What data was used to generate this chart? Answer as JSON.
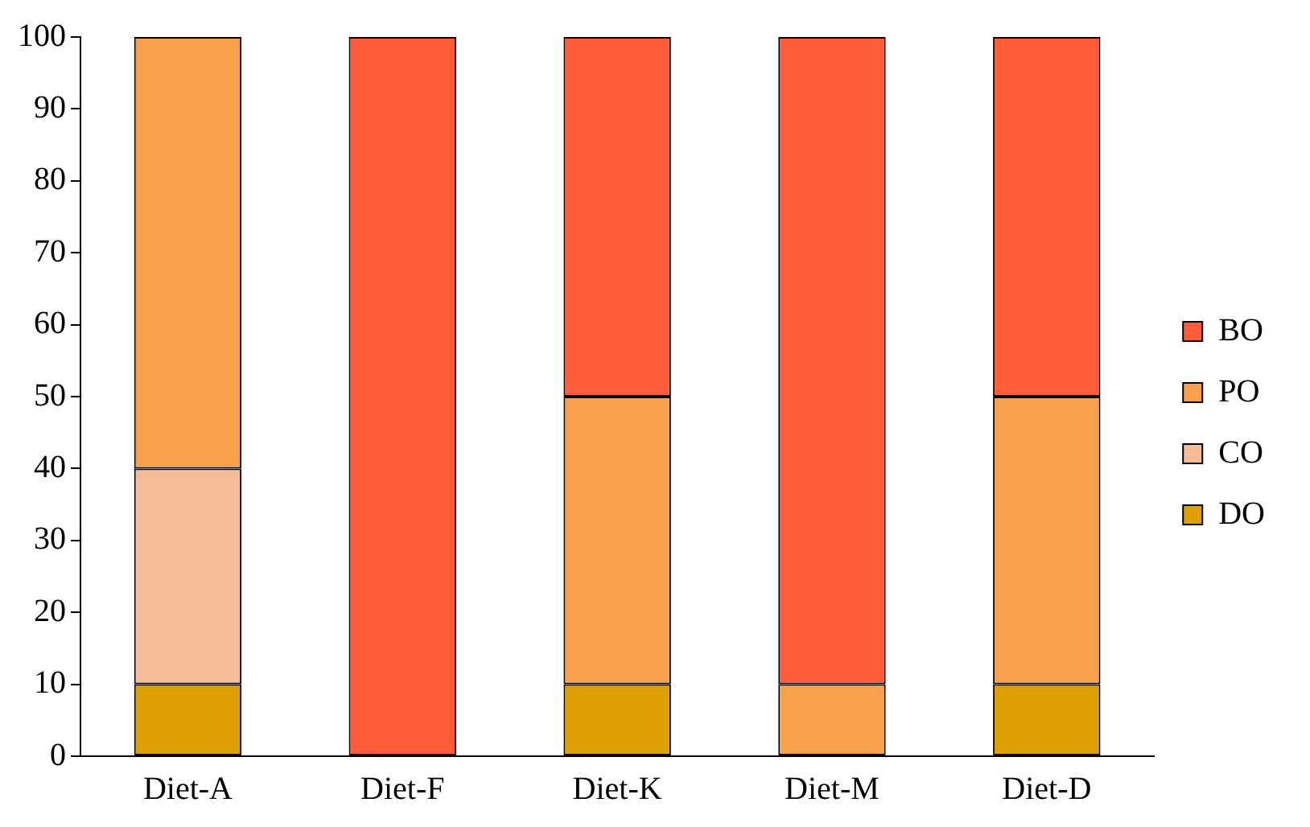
{
  "chart_data": {
    "type": "bar",
    "stacked": true,
    "categories": [
      "Diet-A",
      "Diet-F",
      "Diet-K",
      "Diet-M",
      "Diet-D"
    ],
    "series": [
      {
        "name": "DO",
        "color": "#dea000",
        "values": [
          10,
          0,
          10,
          0,
          10
        ]
      },
      {
        "name": "CO",
        "color": "#f6bc98",
        "values": [
          30,
          0,
          0,
          0,
          0
        ]
      },
      {
        "name": "PO",
        "color": "#f7a24a",
        "values": [
          60,
          0,
          40,
          10,
          40
        ]
      },
      {
        "name": "BO",
        "color": "#ff5c3a",
        "values": [
          0,
          100,
          50,
          90,
          50
        ]
      }
    ],
    "ylim": [
      0,
      100
    ],
    "yticks": [
      0,
      10,
      20,
      30,
      40,
      50,
      60,
      70,
      80,
      90,
      100
    ],
    "grid": false,
    "legend": "right"
  }
}
